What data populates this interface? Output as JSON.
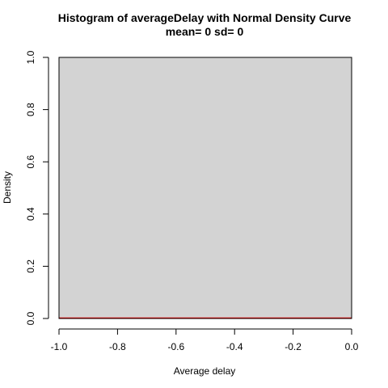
{
  "chart_data": {
    "type": "bar",
    "title": "Histogram of averageDelay with Normal Density Curve",
    "subtitle": "mean= 0 sd= 0",
    "xlabel": "Average delay",
    "ylabel": "Density",
    "xlim": [
      -1.0,
      0.0
    ],
    "ylim": [
      0.0,
      1.0
    ],
    "x_ticks": [
      -1.0,
      -0.8,
      -0.6,
      -0.4,
      -0.2,
      0.0
    ],
    "x_tick_labels": [
      "-1.0",
      "-0.8",
      "-0.6",
      "-0.4",
      "-0.2",
      "0.0"
    ],
    "y_ticks": [
      0.0,
      0.2,
      0.4,
      0.6,
      0.8,
      1.0
    ],
    "y_tick_labels": [
      "0.0",
      "0.2",
      "0.4",
      "0.6",
      "0.8",
      "1.0"
    ],
    "bins": [
      {
        "x_start": -1.0,
        "x_end": 0.0,
        "density": 1.0
      }
    ],
    "density_curve": {
      "x": [
        -1.0,
        0.0
      ],
      "y": [
        0.0,
        0.0
      ]
    },
    "grid": false,
    "colors": {
      "bar_fill": "#d3d3d3",
      "bar_stroke": "#000000",
      "curve": "#ff0000"
    }
  }
}
